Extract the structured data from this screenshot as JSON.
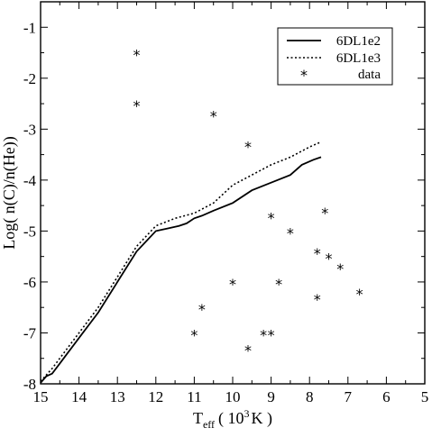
{
  "chart_data": {
    "type": "line",
    "xlabel": {
      "main": "T",
      "sub": "eff",
      "pre": "( 10",
      "sup": "3",
      "post": "K )"
    },
    "ylabel": "Log( n(C)/n(He))",
    "xlim": [
      15,
      5
    ],
    "ylim": [
      -8,
      -0.5
    ],
    "xticks": [
      15,
      14,
      13,
      12,
      11,
      10,
      9,
      8,
      7,
      6,
      5
    ],
    "yticks": [
      -1,
      -2,
      -3,
      -4,
      -5,
      -6,
      -7,
      -8
    ],
    "legend_position": "top-right",
    "legend": [
      {
        "label": "6DL1e2",
        "style": "solid"
      },
      {
        "label": "6DL1e3",
        "style": "dotted"
      },
      {
        "label": "data",
        "style": "marker"
      }
    ],
    "series": [
      {
        "name": "6DL1e2",
        "style": "solid",
        "x": [
          15.0,
          14.85,
          14.7,
          14.5,
          14.3,
          14.0,
          13.5,
          13.0,
          12.5,
          12.0,
          11.7,
          11.4,
          11.2,
          11.0,
          10.8,
          10.5,
          10.0,
          9.5,
          9.0,
          8.5,
          8.2,
          7.9,
          7.7
        ],
        "y": [
          -7.98,
          -7.85,
          -7.8,
          -7.6,
          -7.4,
          -7.1,
          -6.6,
          -6.0,
          -5.4,
          -5.0,
          -4.95,
          -4.9,
          -4.85,
          -4.75,
          -4.7,
          -4.6,
          -4.45,
          -4.2,
          -4.05,
          -3.9,
          -3.7,
          -3.6,
          -3.55
        ]
      },
      {
        "name": "6DL1e3",
        "style": "dotted",
        "x": [
          15.0,
          14.7,
          14.3,
          14.0,
          13.5,
          13.0,
          12.5,
          12.0,
          11.5,
          11.0,
          10.5,
          10.0,
          9.5,
          9.0,
          8.5,
          8.0,
          7.7
        ],
        "y": [
          -7.95,
          -7.7,
          -7.3,
          -7.0,
          -6.5,
          -5.9,
          -5.3,
          -4.9,
          -4.75,
          -4.65,
          -4.45,
          -4.1,
          -3.9,
          -3.7,
          -3.55,
          -3.35,
          -3.25
        ]
      },
      {
        "name": "data",
        "style": "marker",
        "points": [
          [
            12.5,
            -1.5
          ],
          [
            12.5,
            -2.5
          ],
          [
            10.5,
            -2.7
          ],
          [
            9.6,
            -3.3
          ],
          [
            9.0,
            -4.7
          ],
          [
            8.5,
            -5.0
          ],
          [
            7.6,
            -4.6
          ],
          [
            7.8,
            -5.4
          ],
          [
            7.5,
            -5.5
          ],
          [
            7.2,
            -5.7
          ],
          [
            10.0,
            -6.0
          ],
          [
            8.8,
            -6.0
          ],
          [
            6.7,
            -6.2
          ],
          [
            7.8,
            -6.3
          ],
          [
            10.8,
            -6.5
          ],
          [
            11.0,
            -7.0
          ],
          [
            9.2,
            -7.0
          ],
          [
            9.0,
            -7.0
          ],
          [
            9.6,
            -7.3
          ]
        ]
      }
    ]
  }
}
